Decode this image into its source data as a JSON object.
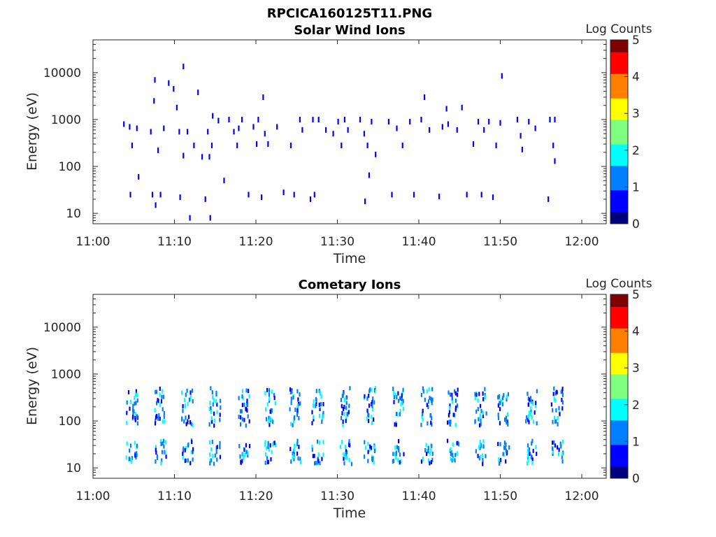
{
  "figure": {
    "title": "RPCICA160125T11.PNG"
  },
  "colorscale": {
    "colors": [
      "#00007f",
      "#0000ff",
      "#007fff",
      "#00ffff",
      "#7fff7f",
      "#ffff00",
      "#ff7f00",
      "#ff0000",
      "#7f0000"
    ],
    "ticks": [
      "0",
      "1",
      "2",
      "3",
      "4",
      "5"
    ],
    "range": [
      0,
      5
    ]
  },
  "chart_data": [
    {
      "type": "heatmap",
      "title": "Solar Wind Ions",
      "xlabel": "Time",
      "ylabel": "Energy (eV)",
      "colorbar_label": "Log Counts",
      "x_ticks": [
        "11:00",
        "11:10",
        "11:20",
        "11:30",
        "11:40",
        "11:50",
        "12:00"
      ],
      "xlim_minutes": [
        0,
        63
      ],
      "y_ticks": [
        "10",
        "100",
        "1000",
        "10000"
      ],
      "y_scale": "log",
      "ylim": [
        6,
        50000
      ],
      "grid": false,
      "samples": [
        {
          "t": 3.7,
          "e": 800,
          "v": 0.6
        },
        {
          "t": 4.4,
          "e": 700,
          "v": 0.7
        },
        {
          "t": 4.5,
          "e": 25,
          "v": 0.8
        },
        {
          "t": 4.7,
          "e": 280,
          "v": 0.6
        },
        {
          "t": 5.3,
          "e": 650,
          "v": 0.6
        },
        {
          "t": 5.5,
          "e": 60,
          "v": 0.5
        },
        {
          "t": 7.0,
          "e": 550,
          "v": 0.7
        },
        {
          "t": 7.2,
          "e": 25,
          "v": 0.8
        },
        {
          "t": 7.4,
          "e": 2500,
          "v": 0.5
        },
        {
          "t": 7.5,
          "e": 7000,
          "v": 0.5
        },
        {
          "t": 7.6,
          "e": 15,
          "v": 0.7
        },
        {
          "t": 7.9,
          "e": 220,
          "v": 0.6
        },
        {
          "t": 8.2,
          "e": 25,
          "v": 0.8
        },
        {
          "t": 8.6,
          "e": 650,
          "v": 0.6
        },
        {
          "t": 9.2,
          "e": 6000,
          "v": 0.5
        },
        {
          "t": 9.8,
          "e": 4500,
          "v": 0.5
        },
        {
          "t": 10.2,
          "e": 1800,
          "v": 0.5
        },
        {
          "t": 10.5,
          "e": 550,
          "v": 0.7
        },
        {
          "t": 10.6,
          "e": 22,
          "v": 0.8
        },
        {
          "t": 11.0,
          "e": 13500,
          "v": 0.5
        },
        {
          "t": 11.0,
          "e": 170,
          "v": 0.6
        },
        {
          "t": 11.5,
          "e": 550,
          "v": 0.7
        },
        {
          "t": 11.8,
          "e": 8,
          "v": 0.7
        },
        {
          "t": 12.3,
          "e": 280,
          "v": 0.6
        },
        {
          "t": 12.8,
          "e": 3800,
          "v": 0.5
        },
        {
          "t": 13.3,
          "e": 160,
          "v": 0.6
        },
        {
          "t": 13.7,
          "e": 20,
          "v": 0.7
        },
        {
          "t": 14.0,
          "e": 550,
          "v": 0.7
        },
        {
          "t": 14.2,
          "e": 160,
          "v": 0.6
        },
        {
          "t": 14.3,
          "e": 8,
          "v": 0.7
        },
        {
          "t": 14.5,
          "e": 280,
          "v": 0.8
        },
        {
          "t": 14.6,
          "e": 1200,
          "v": 0.5
        },
        {
          "t": 15.3,
          "e": 950,
          "v": 0.6
        },
        {
          "t": 16.0,
          "e": 50,
          "v": 0.5
        },
        {
          "t": 16.6,
          "e": 1000,
          "v": 0.5
        },
        {
          "t": 17.2,
          "e": 550,
          "v": 0.7
        },
        {
          "t": 17.6,
          "e": 280,
          "v": 0.8
        },
        {
          "t": 17.8,
          "e": 650,
          "v": 0.6
        },
        {
          "t": 18.2,
          "e": 1000,
          "v": 0.6
        },
        {
          "t": 19.0,
          "e": 25,
          "v": 0.7
        },
        {
          "t": 19.6,
          "e": 700,
          "v": 0.6
        },
        {
          "t": 20.0,
          "e": 300,
          "v": 0.6
        },
        {
          "t": 20.2,
          "e": 1000,
          "v": 0.7
        },
        {
          "t": 20.6,
          "e": 22,
          "v": 0.8
        },
        {
          "t": 20.8,
          "e": 3000,
          "v": 0.5
        },
        {
          "t": 21.0,
          "e": 500,
          "v": 0.7
        },
        {
          "t": 21.4,
          "e": 300,
          "v": 0.6
        },
        {
          "t": 22.5,
          "e": 700,
          "v": 0.5
        },
        {
          "t": 23.3,
          "e": 28,
          "v": 0.7
        },
        {
          "t": 24.2,
          "e": 280,
          "v": 0.6
        },
        {
          "t": 24.6,
          "e": 25,
          "v": 0.7
        },
        {
          "t": 25.3,
          "e": 1000,
          "v": 0.6
        },
        {
          "t": 25.6,
          "e": 600,
          "v": 0.5
        },
        {
          "t": 26.6,
          "e": 20,
          "v": 0.7
        },
        {
          "t": 26.9,
          "e": 1000,
          "v": 0.8
        },
        {
          "t": 27.1,
          "e": 25,
          "v": 0.8
        },
        {
          "t": 27.6,
          "e": 1000,
          "v": 0.7
        },
        {
          "t": 28.5,
          "e": 600,
          "v": 0.5
        },
        {
          "t": 29.4,
          "e": 500,
          "v": 0.6
        },
        {
          "t": 30.0,
          "e": 900,
          "v": 0.7
        },
        {
          "t": 30.4,
          "e": 280,
          "v": 0.6
        },
        {
          "t": 30.8,
          "e": 1000,
          "v": 0.7
        },
        {
          "t": 31.2,
          "e": 600,
          "v": 0.5
        },
        {
          "t": 32.7,
          "e": 1000,
          "v": 0.6
        },
        {
          "t": 33.2,
          "e": 500,
          "v": 0.7
        },
        {
          "t": 33.3,
          "e": 18,
          "v": 0.7
        },
        {
          "t": 33.6,
          "e": 280,
          "v": 0.7
        },
        {
          "t": 33.8,
          "e": 65,
          "v": 0.7
        },
        {
          "t": 34.1,
          "e": 900,
          "v": 0.6
        },
        {
          "t": 34.6,
          "e": 180,
          "v": 0.5
        },
        {
          "t": 36.2,
          "e": 900,
          "v": 0.6
        },
        {
          "t": 36.6,
          "e": 25,
          "v": 0.7
        },
        {
          "t": 37.2,
          "e": 650,
          "v": 0.6
        },
        {
          "t": 37.9,
          "e": 280,
          "v": 0.5
        },
        {
          "t": 38.8,
          "e": 900,
          "v": 0.5
        },
        {
          "t": 39.3,
          "e": 25,
          "v": 0.7
        },
        {
          "t": 40.2,
          "e": 1000,
          "v": 0.6
        },
        {
          "t": 40.6,
          "e": 3000,
          "v": 0.5
        },
        {
          "t": 41.2,
          "e": 600,
          "v": 0.6
        },
        {
          "t": 42.4,
          "e": 23,
          "v": 0.7
        },
        {
          "t": 42.8,
          "e": 700,
          "v": 0.7
        },
        {
          "t": 43.3,
          "e": 1700,
          "v": 0.6
        },
        {
          "t": 43.5,
          "e": 800,
          "v": 0.7
        },
        {
          "t": 44.6,
          "e": 600,
          "v": 0.5
        },
        {
          "t": 45.2,
          "e": 1800,
          "v": 0.5
        },
        {
          "t": 45.8,
          "e": 25,
          "v": 0.8
        },
        {
          "t": 46.6,
          "e": 300,
          "v": 0.6
        },
        {
          "t": 47.2,
          "e": 900,
          "v": 0.6
        },
        {
          "t": 47.6,
          "e": 25,
          "v": 0.7
        },
        {
          "t": 47.9,
          "e": 600,
          "v": 0.8
        },
        {
          "t": 48.5,
          "e": 900,
          "v": 0.7
        },
        {
          "t": 49.0,
          "e": 22,
          "v": 0.8
        },
        {
          "t": 49.4,
          "e": 280,
          "v": 0.6
        },
        {
          "t": 49.9,
          "e": 850,
          "v": 0.6
        },
        {
          "t": 50.1,
          "e": 8500,
          "v": 0.5
        },
        {
          "t": 52.0,
          "e": 1000,
          "v": 0.6
        },
        {
          "t": 52.4,
          "e": 450,
          "v": 0.5
        },
        {
          "t": 52.6,
          "e": 230,
          "v": 0.6
        },
        {
          "t": 53.4,
          "e": 900,
          "v": 0.5
        },
        {
          "t": 54.2,
          "e": 650,
          "v": 0.5
        },
        {
          "t": 55.8,
          "e": 20,
          "v": 0.7
        },
        {
          "t": 56.0,
          "e": 1000,
          "v": 0.7
        },
        {
          "t": 56.4,
          "e": 280,
          "v": 0.6
        },
        {
          "t": 56.6,
          "e": 1000,
          "v": 0.6
        },
        {
          "t": 56.6,
          "e": 130,
          "v": 0.5
        }
      ]
    },
    {
      "type": "heatmap",
      "title": "Cometary Ions",
      "xlabel": "Time",
      "ylabel": "Energy (eV)",
      "colorbar_label": "Log Counts",
      "x_ticks": [
        "11:00",
        "11:10",
        "11:20",
        "11:30",
        "11:40",
        "11:50",
        "12:00"
      ],
      "xlim_minutes": [
        0,
        63
      ],
      "y_ticks": [
        "10",
        "100",
        "1000",
        "10000"
      ],
      "y_scale": "log",
      "ylim": [
        6,
        50000
      ],
      "grid": false,
      "bursts": [
        {
          "t": 4.0,
          "hi": 1.6
        },
        {
          "t": 7.5,
          "hi": 1.5
        },
        {
          "t": 10.8,
          "hi": 1.4
        },
        {
          "t": 14.2,
          "hi": 1.4
        },
        {
          "t": 17.8,
          "hi": 1.4
        },
        {
          "t": 21.0,
          "hi": 1.5
        },
        {
          "t": 24.0,
          "hi": 1.4
        },
        {
          "t": 26.8,
          "hi": 1.6
        },
        {
          "t": 30.3,
          "hi": 1.4
        },
        {
          "t": 33.2,
          "hi": 1.6
        },
        {
          "t": 36.7,
          "hi": 1.4
        },
        {
          "t": 40.2,
          "hi": 1.4
        },
        {
          "t": 43.4,
          "hi": 1.3
        },
        {
          "t": 46.8,
          "hi": 1.3
        },
        {
          "t": 49.6,
          "hi": 1.3
        },
        {
          "t": 53.0,
          "hi": 1.6
        },
        {
          "t": 56.2,
          "hi": 1.4
        }
      ]
    }
  ]
}
